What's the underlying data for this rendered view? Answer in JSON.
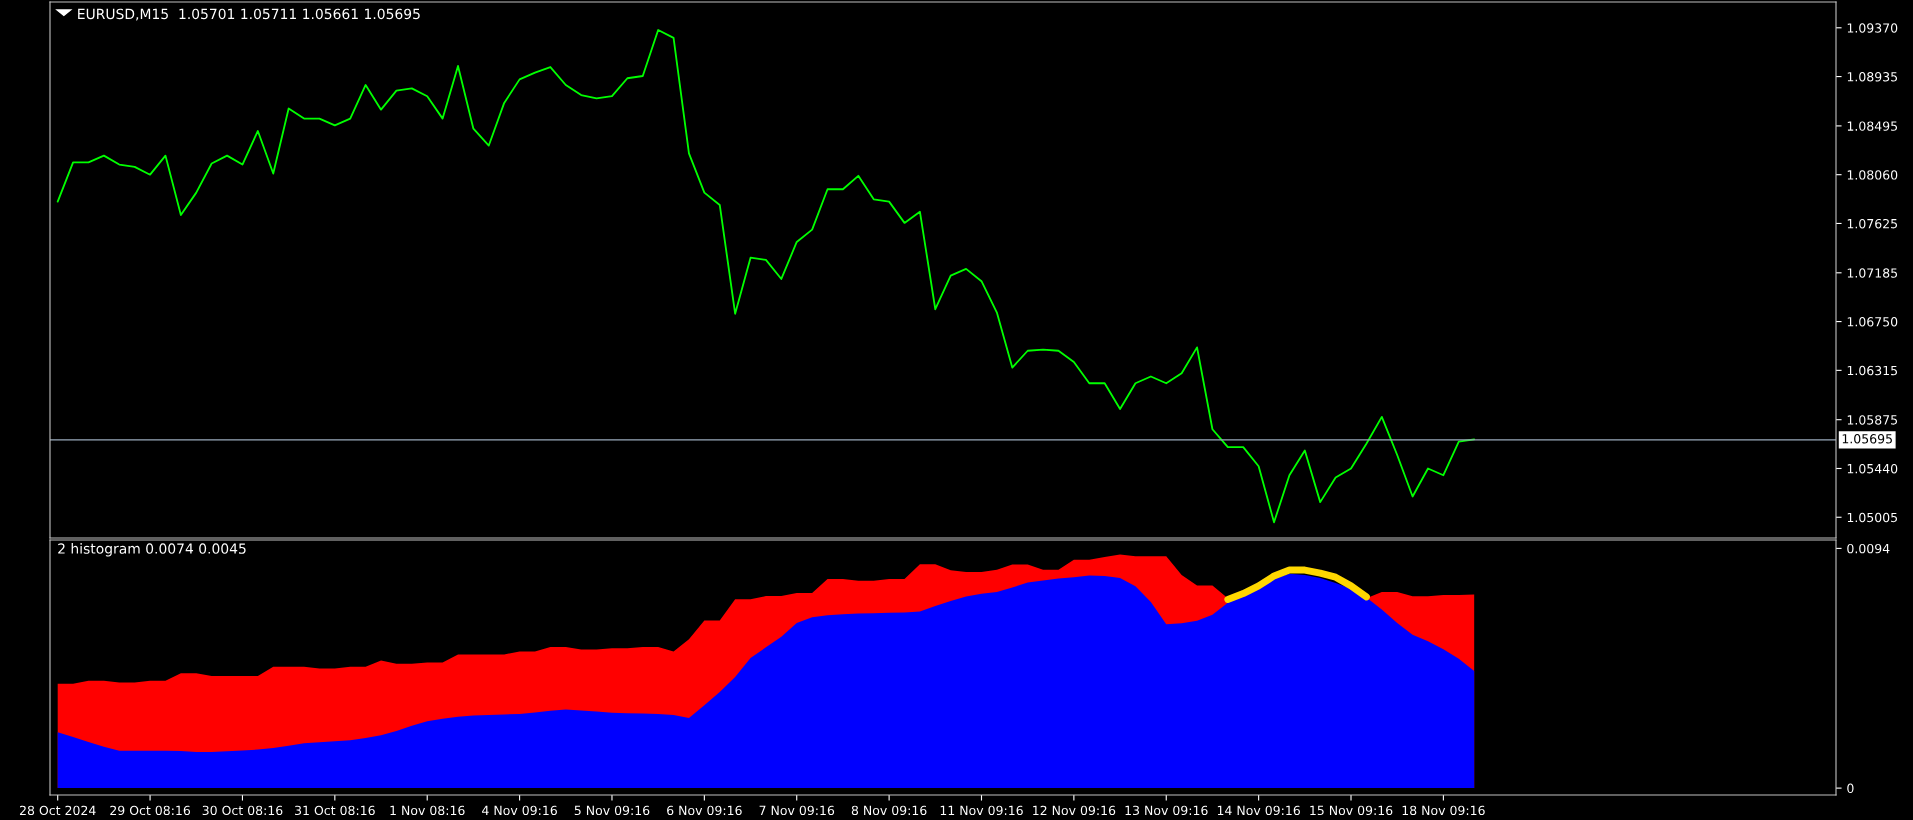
{
  "chart_data": [
    {
      "type": "line",
      "title": "EURUSD,M15  1.05701 1.05711 1.05661 1.05695",
      "categories": [
        null,
        null,
        null,
        null,
        null,
        null,
        null,
        null,
        null,
        null,
        null,
        null,
        null,
        null,
        null,
        null,
        null,
        null,
        null,
        null,
        null,
        null,
        null,
        null,
        null,
        null,
        null,
        null,
        null,
        null,
        null,
        null,
        null,
        null,
        null,
        null,
        null,
        null,
        null,
        null,
        null,
        null,
        null,
        null,
        null,
        null,
        null,
        null,
        null,
        null,
        null,
        null,
        null,
        null,
        null,
        null,
        null,
        null,
        null,
        null,
        null,
        null,
        null,
        null,
        null,
        null,
        null,
        null,
        null,
        null,
        null,
        null,
        null,
        null,
        null,
        null,
        null,
        null,
        null,
        null,
        null,
        null,
        null,
        null,
        null,
        null,
        null,
        null,
        null,
        null,
        null,
        null,
        null,
        null,
        null,
        null,
        null,
        null,
        null,
        null,
        null,
        null,
        null,
        null,
        null,
        null,
        null,
        null,
        null,
        null,
        null,
        null,
        null,
        null,
        null,
        null
      ],
      "series": [
        {
          "color": "#00ff00",
          "values": [
            1.0782,
            1.0817,
            1.0817,
            1.0823,
            1.0815,
            1.0813,
            1.0806,
            1.0823,
            1.077,
            1.079,
            1.0816,
            1.0823,
            1.0815,
            1.0845,
            1.0807,
            1.0865,
            1.0856,
            1.0856,
            1.085,
            1.0856,
            1.0886,
            1.0864,
            1.0881,
            1.0883,
            1.0876,
            1.0856,
            1.0903,
            1.0847,
            1.0832,
            1.087,
            1.0891,
            1.0897,
            1.0902,
            1.0886,
            1.0877,
            1.0874,
            1.0876,
            1.0892,
            1.0894,
            1.0935,
            1.0928,
            1.0825,
            1.079,
            1.0779,
            1.0682,
            1.0732,
            1.073,
            1.0713,
            1.0746,
            1.0757,
            1.0793,
            1.0793,
            1.0805,
            1.0784,
            1.0782,
            1.0763,
            1.0773,
            1.0686,
            1.0716,
            1.0722,
            1.0711,
            1.0683,
            1.0634,
            1.0649,
            1.065,
            1.0649,
            1.0639,
            1.062,
            1.062,
            1.0597,
            1.062,
            1.0626,
            1.062,
            1.0629,
            1.0652,
            1.0579,
            1.0563,
            1.0563,
            1.0546,
            1.0496,
            1.0538,
            1.056,
            1.0514,
            1.0536,
            1.0544,
            1.0566,
            1.059,
            1.0556,
            1.0519,
            1.0544,
            1.0538,
            1.0568,
            1.057,
            null,
            null,
            null,
            null,
            null,
            null,
            null,
            null,
            null,
            null,
            null,
            null,
            null,
            null,
            null,
            null,
            null,
            null,
            null,
            null,
            null,
            null,
            null
          ]
        }
      ],
      "ylim": [
        1.0482,
        1.096
      ],
      "yticks": [
        1.05005,
        {
          "value": 1.0544,
          "label": "1.05440"
        },
        1.05875,
        1.06315,
        {
          "value": 1.0675,
          "label": "1.06750"
        },
        1.07185,
        1.07625,
        {
          "value": 1.0806,
          "label": "1.08060"
        },
        1.08495,
        1.08935,
        {
          "value": 1.0937,
          "label": "1.09370"
        }
      ],
      "ref_lines": [
        {
          "axis": "y",
          "value": 1.05695,
          "label": "1.05695",
          "color": "#9aaabb"
        }
      ],
      "tick_labels": "y"
    },
    {
      "type": "area",
      "title": "2 histogram 0.0074 0.0045",
      "categories": [
        "28 Oct 2024",
        null,
        null,
        null,
        null,
        null,
        "29 Oct 08:16",
        null,
        null,
        null,
        null,
        null,
        "30 Oct 08:16",
        null,
        null,
        null,
        null,
        null,
        "31 Oct 08:16",
        null,
        null,
        null,
        null,
        null,
        "1 Nov 08:16",
        null,
        null,
        null,
        null,
        null,
        "4 Nov 09:16",
        null,
        null,
        null,
        null,
        null,
        "5 Nov 09:16",
        null,
        null,
        null,
        null,
        null,
        "6 Nov 09:16",
        null,
        null,
        null,
        null,
        null,
        "7 Nov 09:16",
        null,
        null,
        null,
        null,
        null,
        "8 Nov 09:16",
        null,
        null,
        null,
        null,
        null,
        "11 Nov 09:16",
        null,
        null,
        null,
        null,
        null,
        "12 Nov 09:16",
        null,
        null,
        null,
        null,
        null,
        "13 Nov 09:16",
        null,
        null,
        null,
        null,
        null,
        "14 Nov 09:16",
        null,
        null,
        null,
        null,
        null,
        "15 Nov 09:16",
        null,
        null,
        null,
        null,
        null,
        "18 Nov 09:16",
        null,
        null,
        null,
        null,
        null,
        null,
        null,
        null,
        null,
        null,
        null,
        null,
        null,
        null,
        null,
        null,
        null,
        null,
        null,
        null,
        null,
        null,
        null,
        null,
        null
      ],
      "series": [
        {
          "color": "#ff0000",
          "values": [
            0.00409,
            0.00409,
            0.00421,
            0.00421,
            0.00414,
            0.00414,
            0.00421,
            0.00421,
            0.0045,
            0.0045,
            0.0044,
            0.0044,
            0.0044,
            0.0044,
            0.00476,
            0.00476,
            0.00476,
            0.00469,
            0.00469,
            0.00476,
            0.00476,
            0.005,
            0.00488,
            0.00488,
            0.00493,
            0.00493,
            0.00524,
            0.00524,
            0.00524,
            0.00524,
            0.00536,
            0.00536,
            0.00553,
            0.00553,
            0.00544,
            0.00544,
            0.00548,
            0.00548,
            0.00553,
            0.00553,
            0.00536,
            0.00584,
            0.00657,
            0.00657,
            0.00741,
            0.00741,
            0.00753,
            0.00753,
            0.00765,
            0.00765,
            0.0082,
            0.0082,
            0.00813,
            0.00813,
            0.0082,
            0.0082,
            0.00878,
            0.00878,
            0.00854,
            0.00848,
            0.00848,
            0.00856,
            0.00877,
            0.00877,
            0.00856,
            0.00856,
            0.00896,
            0.00896,
            0.00906,
            0.00916,
            0.00909,
            0.00909,
            0.00909,
            0.00836,
            0.00795,
            0.00795,
            0.00745,
            null,
            null,
            null,
            null,
            null,
            null,
            null,
            null,
            0.00745,
            0.00769,
            0.00769,
            0.00752,
            0.00752,
            0.00757,
            0.00757,
            0.00759,
            null,
            null,
            null,
            null,
            null,
            null,
            null,
            null,
            null,
            null,
            null,
            null,
            null,
            null,
            null,
            null,
            null,
            null,
            null,
            null,
            null,
            null,
            null
          ]
        },
        {
          "color": "#0000ff",
          "values": [
            0.00219,
            0.002,
            0.00181,
            0.00162,
            0.00147,
            0.00147,
            0.00147,
            0.00147,
            0.00146,
            0.00142,
            0.00142,
            0.00145,
            0.00148,
            0.00151,
            0.00157,
            0.00166,
            0.00176,
            0.0018,
            0.00184,
            0.00188,
            0.00197,
            0.00207,
            0.00224,
            0.00245,
            0.00262,
            0.00272,
            0.0028,
            0.00285,
            0.00287,
            0.00289,
            0.00291,
            0.00297,
            0.00303,
            0.00308,
            0.00304,
            0.003,
            0.00296,
            0.00294,
            0.00293,
            0.00291,
            0.00287,
            0.00275,
            0.00325,
            0.00377,
            0.00436,
            0.0051,
            0.00552,
            0.00594,
            0.00648,
            0.0067,
            0.00678,
            0.00682,
            0.00685,
            0.00686,
            0.00688,
            0.00689,
            0.00693,
            0.00714,
            0.00734,
            0.00751,
            0.00762,
            0.00769,
            0.00787,
            0.00806,
            0.00814,
            0.00822,
            0.00827,
            0.00834,
            0.00832,
            0.00824,
            0.00792,
            0.0073,
            0.00643,
            0.00647,
            0.00656,
            0.0068,
            0.00727,
            0.00763,
            0.00795,
            0.00821,
            0.00841,
            0.00836,
            0.00824,
            0.00804,
            0.00782,
            0.00748,
            0.007,
            0.00648,
            0.00601,
            0.00576,
            0.00545,
            0.00507,
            0.00459,
            null,
            null,
            null,
            null,
            null,
            null,
            null,
            null,
            null,
            null,
            null,
            null,
            null,
            null,
            null,
            null,
            null,
            null,
            null,
            null,
            null,
            null,
            null
          ]
        },
        {
          "type": "line",
          "color": "#ffd700",
          "values": [
            null,
            null,
            null,
            null,
            null,
            null,
            null,
            null,
            null,
            null,
            null,
            null,
            null,
            null,
            null,
            null,
            null,
            null,
            null,
            null,
            null,
            null,
            null,
            null,
            null,
            null,
            null,
            null,
            null,
            null,
            null,
            null,
            null,
            null,
            null,
            null,
            null,
            null,
            null,
            null,
            null,
            null,
            null,
            null,
            null,
            null,
            null,
            null,
            null,
            null,
            null,
            null,
            null,
            null,
            null,
            null,
            null,
            null,
            null,
            null,
            null,
            null,
            null,
            null,
            null,
            null,
            null,
            null,
            null,
            null,
            null,
            null,
            null,
            null,
            null,
            null,
            0.0074,
            0.00763,
            0.00793,
            0.00832,
            0.00855,
            0.00855,
            0.00843,
            0.00827,
            0.00793,
            0.0075,
            null,
            null,
            null,
            null,
            null,
            null,
            null,
            null,
            null,
            null,
            null,
            null,
            null,
            null,
            null,
            null,
            null,
            null,
            null,
            null,
            null,
            null,
            null,
            null,
            null,
            null,
            null,
            null,
            null,
            null
          ]
        }
      ],
      "ylim": [
        -0.00027,
        0.00973
      ],
      "yticks": [
        0,
        0.0094
      ]
    }
  ]
}
